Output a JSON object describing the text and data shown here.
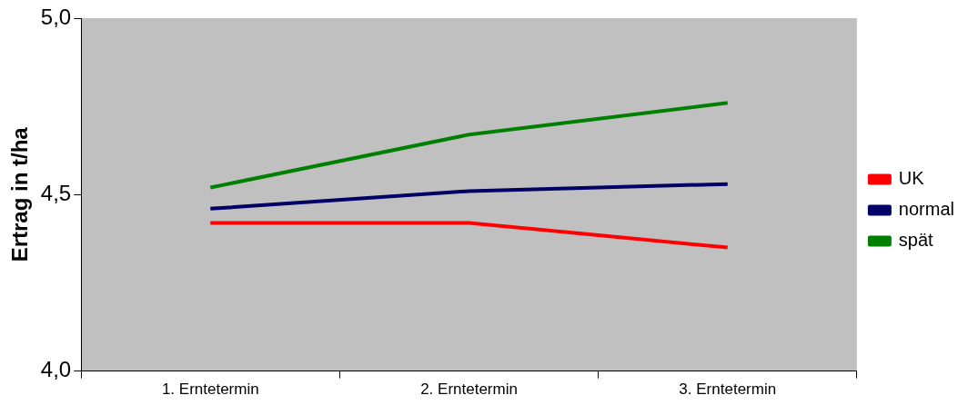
{
  "chart_data": {
    "type": "line",
    "ylabel": "Ertrag in t/ha",
    "categories": [
      "1. Erntetermin",
      "2. Erntetermin",
      "3. Erntetermin"
    ],
    "series": [
      {
        "name": "UK",
        "color": "#ff0000",
        "values": [
          4.42,
          4.42,
          4.35
        ]
      },
      {
        "name": "normal",
        "color": "#000066",
        "values": [
          4.46,
          4.51,
          4.53
        ]
      },
      {
        "name": "spät",
        "color": "#008000",
        "values": [
          4.52,
          4.67,
          4.76
        ]
      }
    ],
    "ylim": [
      4,
      5
    ],
    "yticks": [
      {
        "value": 4,
        "label": "4,0"
      },
      {
        "value": 4.5,
        "label": "4,5"
      },
      {
        "value": 5,
        "label": "5,0"
      }
    ],
    "grid": false,
    "legend": "right",
    "marker": "none",
    "line_style": "solid"
  }
}
